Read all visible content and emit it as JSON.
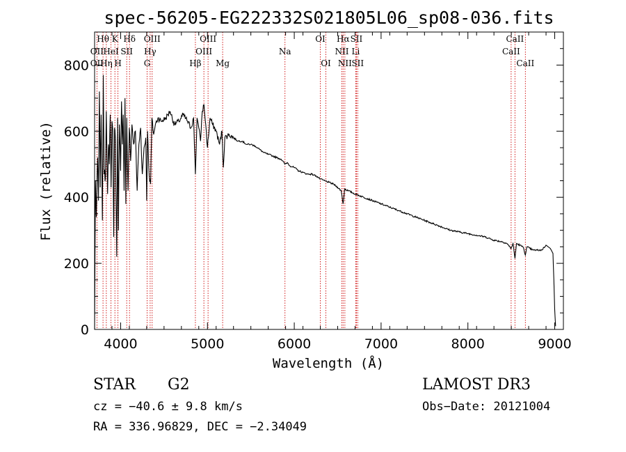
{
  "chart_data": {
    "type": "line",
    "title": "spec-56205-EG222332S021805L06_sp08-036.fits",
    "xlabel": "Wavelength (Å)",
    "ylabel": "Flux (relative)",
    "xlim": [
      3700,
      9100
    ],
    "ylim": [
      0,
      900
    ],
    "xticks": [
      4000,
      5000,
      6000,
      7000,
      8000,
      9000
    ],
    "yticks": [
      0,
      200,
      400,
      600,
      800
    ],
    "series": [
      {
        "name": "spectrum",
        "x": [
          3700,
          3710,
          3720,
          3735,
          3745,
          3755,
          3765,
          3775,
          3790,
          3800,
          3810,
          3825,
          3835,
          3850,
          3860,
          3870,
          3880,
          3890,
          3900,
          3910,
          3920,
          3930,
          3940,
          3955,
          3965,
          3975,
          3985,
          4000,
          4010,
          4020,
          4030,
          4040,
          4050,
          4060,
          4070,
          4085,
          4100,
          4115,
          4130,
          4150,
          4170,
          4190,
          4210,
          4230,
          4250,
          4270,
          4290,
          4300,
          4310,
          4320,
          4330,
          4345,
          4360,
          4380,
          4400,
          4430,
          4470,
          4520,
          4570,
          4620,
          4670,
          4720,
          4770,
          4810,
          4840,
          4861,
          4880,
          4900,
          4920,
          4940,
          4960,
          4980,
          5000,
          5030,
          5060,
          5100,
          5140,
          5167,
          5183,
          5200,
          5250,
          5300,
          5350,
          5400,
          5450,
          5500,
          5550,
          5600,
          5650,
          5700,
          5750,
          5800,
          5850,
          5893,
          5920,
          5950,
          6000,
          6050,
          6100,
          6150,
          6200,
          6250,
          6300,
          6350,
          6400,
          6450,
          6500,
          6540,
          6563,
          6580,
          6620,
          6700,
          6800,
          6900,
          7000,
          7100,
          7200,
          7300,
          7400,
          7500,
          7600,
          7700,
          7800,
          7900,
          8000,
          8100,
          8200,
          8300,
          8400,
          8450,
          8498,
          8520,
          8542,
          8560,
          8600,
          8640,
          8662,
          8680,
          8750,
          8850,
          8900,
          8950,
          8980,
          8990,
          9000,
          9010
        ],
        "values": [
          0,
          450,
          340,
          520,
          390,
          720,
          430,
          650,
          330,
          770,
          470,
          460,
          660,
          410,
          560,
          500,
          650,
          430,
          630,
          600,
          280,
          610,
          570,
          220,
          640,
          300,
          620,
          480,
          690,
          560,
          650,
          420,
          700,
          380,
          640,
          420,
          610,
          510,
          620,
          560,
          600,
          420,
          560,
          610,
          470,
          550,
          580,
          390,
          600,
          520,
          460,
          440,
          640,
          590,
          620,
          640,
          630,
          640,
          660,
          620,
          630,
          650,
          630,
          610,
          640,
          470,
          640,
          610,
          570,
          660,
          680,
          620,
          550,
          640,
          620,
          600,
          560,
          600,
          490,
          580,
          590,
          580,
          570,
          570,
          560,
          560,
          555,
          545,
          535,
          530,
          525,
          520,
          515,
          500,
          505,
          495,
          490,
          480,
          475,
          470,
          470,
          465,
          455,
          450,
          445,
          440,
          430,
          420,
          380,
          425,
          420,
          410,
          400,
          390,
          380,
          370,
          360,
          350,
          340,
          330,
          320,
          310,
          300,
          295,
          290,
          285,
          280,
          270,
          265,
          260,
          245,
          260,
          215,
          260,
          255,
          248,
          225,
          250,
          240,
          240,
          255,
          245,
          230,
          150,
          60,
          10
        ]
      }
    ],
    "lines": [
      {
        "name": "Hθ",
        "x": 3797,
        "row": 0
      },
      {
        "name": "OII",
        "x": 3727,
        "row": 1
      },
      {
        "name": "OII",
        "x": 3727,
        "row": 2
      },
      {
        "name": "Hη",
        "x": 3835,
        "row": 2
      },
      {
        "name": "HeI",
        "x": 3889,
        "row": 1
      },
      {
        "name": "K",
        "x": 3934,
        "row": 0
      },
      {
        "name": "H",
        "x": 3969,
        "row": 2
      },
      {
        "name": "SII",
        "x": 4070,
        "row": 1
      },
      {
        "name": "Hδ",
        "x": 4102,
        "row": 0
      },
      {
        "name": "OIII",
        "x": 4363,
        "row": 0
      },
      {
        "name": "Hγ",
        "x": 4340,
        "row": 1
      },
      {
        "name": "G",
        "x": 4305,
        "row": 2
      },
      {
        "name": "Hβ",
        "x": 4861,
        "row": 2
      },
      {
        "name": "OIII",
        "x": 5007,
        "row": 0
      },
      {
        "name": "OIII",
        "x": 4959,
        "row": 1
      },
      {
        "name": "Mg",
        "x": 5175,
        "row": 2
      },
      {
        "name": "Na",
        "x": 5893,
        "row": 1
      },
      {
        "name": "OI",
        "x": 6300,
        "row": 0
      },
      {
        "name": "OI",
        "x": 6364,
        "row": 2
      },
      {
        "name": "Hα",
        "x": 6563,
        "row": 0
      },
      {
        "name": "NII",
        "x": 6548,
        "row": 1
      },
      {
        "name": "NII",
        "x": 6583,
        "row": 2
      },
      {
        "name": "SII",
        "x": 6716,
        "row": 0
      },
      {
        "name": "Li",
        "x": 6708,
        "row": 1
      },
      {
        "name": "SII",
        "x": 6731,
        "row": 2
      },
      {
        "name": "CaII",
        "x": 8498,
        "row": 1
      },
      {
        "name": "CaII",
        "x": 8542,
        "row": 0
      },
      {
        "name": "CaII",
        "x": 8662,
        "row": 2
      }
    ]
  },
  "info": {
    "object_class": "STAR",
    "subclass": "G2",
    "cz": "cz = −40.6 ± 9.8 km/s",
    "coords": "RA = 336.96829, DEC =  −2.34049",
    "survey": "LAMOST DR3",
    "obs_date": "Obs−Date: 20121004"
  },
  "colors": {
    "spectrum": "#000000",
    "marker": "#cc0000"
  }
}
